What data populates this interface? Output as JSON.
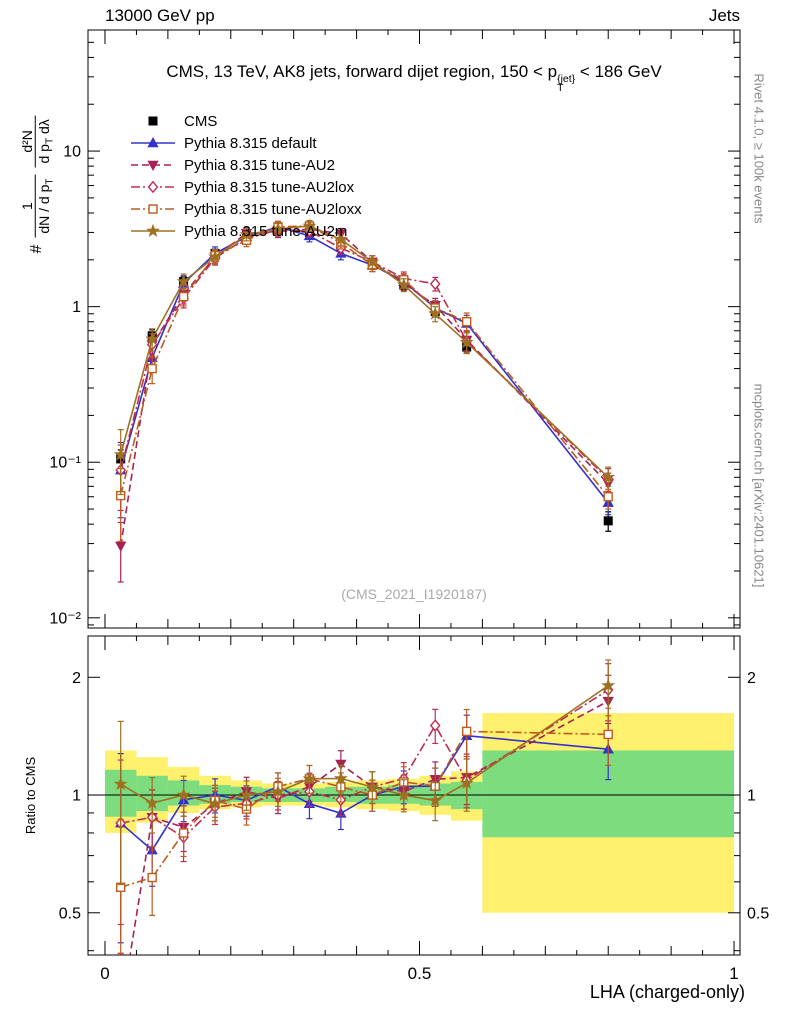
{
  "header": {
    "left": "13000 GeV pp",
    "right": "Jets"
  },
  "title_parts": {
    "pre": "CMS, 13 TeV, AK8 jets, forward dijet region, 150 < p",
    "sup": "{jet}",
    "sub": "T",
    "post": "< 186 GeV"
  },
  "ylabel_parts": {
    "prefix": "#",
    "frac1_num": "1",
    "frac1_den_main": "dN / d p",
    "frac1_den_sub": "T",
    "frac2_num": "d²N",
    "frac2_den_a": "d p",
    "frac2_den_sub": "T",
    "frac2_den_b": " dλ"
  },
  "watermark": "(CMS_2021_I1920187)",
  "side": {
    "rivet": "Rivet 4.1.0, ≥ 100k events",
    "mcplots": "mcplots.cern.ch [arXiv:2401.10621]"
  },
  "chart_data": {
    "type": "line",
    "title": "CMS, 13 TeV, AK8 jets, forward dijet region, 150 < p_T^{jet} < 186 GeV",
    "xlabel": "LHA (charged-only)",
    "ylabel": "# 1/(dN/dp_T) d²N/(dp_T dλ)",
    "ylabel_ratio": "Ratio to CMS",
    "x": [
      0.025,
      0.075,
      0.125,
      0.175,
      0.225,
      0.275,
      0.325,
      0.375,
      0.425,
      0.475,
      0.525,
      0.575,
      0.8
    ],
    "series": [
      {
        "name": "CMS",
        "color": "#000000",
        "marker": "square",
        "fill": true,
        "line": "none",
        "values": [
          0.105,
          0.65,
          1.45,
          2.2,
          2.9,
          3.1,
          3.0,
          2.45,
          1.85,
          1.38,
          0.93,
          0.55,
          0.042
        ],
        "errors": [
          0.015,
          0.06,
          0.1,
          0.14,
          0.16,
          0.16,
          0.15,
          0.13,
          0.11,
          0.09,
          0.07,
          0.05,
          0.006
        ]
      },
      {
        "name": "Pythia 8.315 default",
        "color": "#3333cc",
        "marker": "triangle-up",
        "fill": true,
        "line": "solid",
        "values": [
          0.089,
          0.47,
          1.41,
          2.2,
          2.81,
          3.26,
          2.85,
          2.2,
          1.85,
          1.45,
          0.98,
          0.78,
          0.055
        ],
        "errors": [
          0.045,
          0.09,
          0.17,
          0.22,
          0.25,
          0.27,
          0.24,
          0.2,
          0.17,
          0.14,
          0.11,
          0.1,
          0.009
        ]
      },
      {
        "name": "Pythia 8.315 tune-AU2",
        "color": "#a52257",
        "marker": "triangle-down",
        "fill": true,
        "line": "dash",
        "values": [
          0.029,
          0.57,
          1.2,
          2.09,
          2.96,
          3.04,
          3.15,
          2.94,
          1.94,
          1.41,
          1.02,
          0.61,
          0.073
        ],
        "errors": [
          0.012,
          0.1,
          0.16,
          0.2,
          0.26,
          0.26,
          0.26,
          0.24,
          0.18,
          0.14,
          0.11,
          0.09,
          0.012
        ]
      },
      {
        "name": "Pythia 8.315 tune-AU2lox",
        "color": "#c42b53",
        "marker": "diamond",
        "fill": false,
        "line": "dashdot",
        "values": [
          0.089,
          0.57,
          1.13,
          2.05,
          2.76,
          3.1,
          3.06,
          2.38,
          1.94,
          1.52,
          1.4,
          0.6,
          0.078
        ],
        "errors": [
          0.04,
          0.1,
          0.15,
          0.2,
          0.24,
          0.26,
          0.25,
          0.21,
          0.18,
          0.15,
          0.14,
          0.09,
          0.013
        ]
      },
      {
        "name": "Pythia 8.315 tune-AU2loxx",
        "color": "#c05a1f",
        "marker": "square",
        "fill": false,
        "line": "dashdot",
        "values": [
          0.061,
          0.4,
          1.16,
          2.13,
          2.67,
          3.26,
          3.3,
          2.57,
          1.85,
          1.49,
          0.98,
          0.8,
          0.06
        ],
        "errors": [
          0.03,
          0.08,
          0.15,
          0.2,
          0.24,
          0.27,
          0.27,
          0.22,
          0.17,
          0.14,
          0.11,
          0.11,
          0.01
        ]
      },
      {
        "name": "Pythia 8.315 tune-AU2m",
        "color": "#9e7021",
        "marker": "star",
        "fill": true,
        "line": "solid",
        "values": [
          0.112,
          0.62,
          1.45,
          2.09,
          2.9,
          3.16,
          3.3,
          2.7,
          1.94,
          1.38,
          0.9,
          0.59,
          0.08
        ],
        "errors": [
          0.05,
          0.1,
          0.17,
          0.2,
          0.25,
          0.26,
          0.27,
          0.22,
          0.18,
          0.13,
          0.1,
          0.09,
          0.013
        ]
      }
    ],
    "main_axis": {
      "ylog": true,
      "ylim": [
        0.0086,
        60
      ],
      "ytick_decades": [
        1,
        0,
        -1,
        -2
      ],
      "ytick_labels": [
        "10",
        "1",
        "10⁻¹",
        "10⁻²"
      ]
    },
    "xaxis": {
      "lim": [
        -0.027,
        1.0095
      ],
      "major": [
        0,
        0.5,
        1
      ],
      "major_labels": [
        "0",
        "0.5",
        "1"
      ],
      "minor_step": 0.05,
      "mid_step": 0.1
    },
    "ratio_axis": {
      "ylog": true,
      "ylim": [
        0.39,
        2.55
      ],
      "ticks": [
        0.5,
        1,
        2
      ],
      "tick_labels": [
        "0.5",
        "1",
        "2"
      ],
      "minor": [
        0.4,
        0.6,
        0.7,
        0.8,
        0.9
      ]
    },
    "bands": {
      "yellow": "#fff06e",
      "green": "#7ddc7d",
      "bins": [
        {
          "x0": 0.0,
          "x1": 0.05,
          "y_lo": 0.8,
          "y_hi": 1.3,
          "g_lo": 0.88,
          "g_hi": 1.16
        },
        {
          "x0": 0.05,
          "x1": 0.1,
          "y_lo": 0.85,
          "y_hi": 1.25,
          "g_lo": 0.91,
          "g_hi": 1.12
        },
        {
          "x0": 0.1,
          "x1": 0.15,
          "y_lo": 0.9,
          "y_hi": 1.18,
          "g_lo": 0.94,
          "g_hi": 1.09
        },
        {
          "x0": 0.15,
          "x1": 0.2,
          "y_lo": 0.92,
          "y_hi": 1.12,
          "g_lo": 0.95,
          "g_hi": 1.06
        },
        {
          "x0": 0.2,
          "x1": 0.25,
          "y_lo": 0.93,
          "y_hi": 1.09,
          "g_lo": 0.96,
          "g_hi": 1.05
        },
        {
          "x0": 0.25,
          "x1": 0.3,
          "y_lo": 0.94,
          "y_hi": 1.07,
          "g_lo": 0.96,
          "g_hi": 1.04
        },
        {
          "x0": 0.3,
          "x1": 0.35,
          "y_lo": 0.94,
          "y_hi": 1.07,
          "g_lo": 0.96,
          "g_hi": 1.04
        },
        {
          "x0": 0.35,
          "x1": 0.4,
          "y_lo": 0.93,
          "y_hi": 1.08,
          "g_lo": 0.96,
          "g_hi": 1.05
        },
        {
          "x0": 0.4,
          "x1": 0.45,
          "y_lo": 0.92,
          "y_hi": 1.09,
          "g_lo": 0.95,
          "g_hi": 1.05
        },
        {
          "x0": 0.45,
          "x1": 0.5,
          "y_lo": 0.91,
          "y_hi": 1.1,
          "g_lo": 0.95,
          "g_hi": 1.06
        },
        {
          "x0": 0.5,
          "x1": 0.55,
          "y_lo": 0.89,
          "y_hi": 1.12,
          "g_lo": 0.94,
          "g_hi": 1.07
        },
        {
          "x0": 0.55,
          "x1": 0.6,
          "y_lo": 0.86,
          "y_hi": 1.15,
          "g_lo": 0.92,
          "g_hi": 1.08
        },
        {
          "x0": 0.6,
          "x1": 1.0,
          "y_lo": 0.5,
          "y_hi": 1.62,
          "g_lo": 0.78,
          "g_hi": 1.3
        }
      ]
    }
  }
}
